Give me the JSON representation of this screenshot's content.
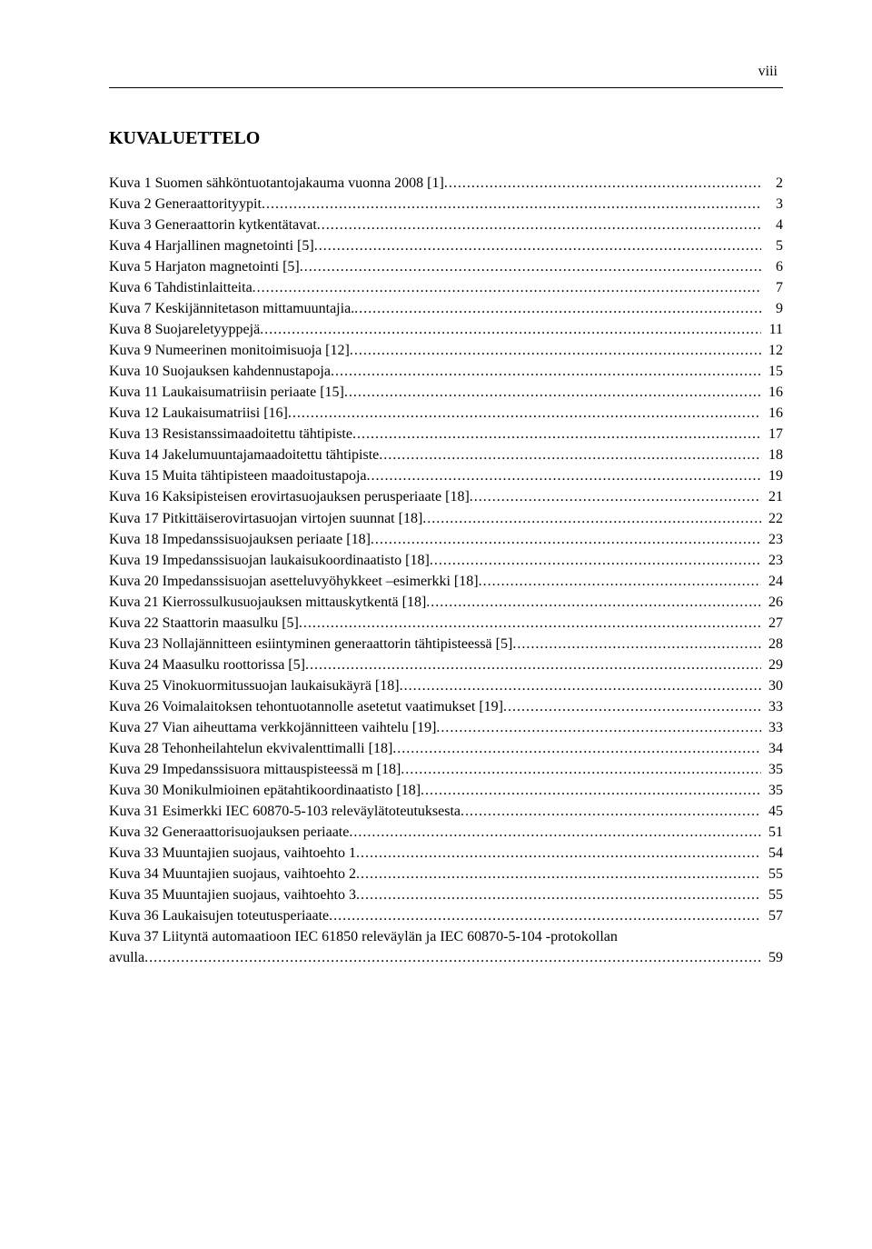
{
  "page_number_roman": "viii",
  "heading": "KUVALUETTELO",
  "entries": [
    {
      "label": "Kuva 1 Suomen sähköntuotantojakauma vuonna 2008 [1]",
      "page": "2"
    },
    {
      "label": "Kuva 2 Generaattorityypit",
      "page": "3"
    },
    {
      "label": "Kuva 3 Generaattorin kytkentätavat",
      "page": "4"
    },
    {
      "label": "Kuva 4 Harjallinen magnetointi [5]",
      "page": "5"
    },
    {
      "label": "Kuva 5 Harjaton magnetointi [5]",
      "page": "6"
    },
    {
      "label": "Kuva 6 Tahdistinlaitteita",
      "page": "7"
    },
    {
      "label": "Kuva 7 Keskijännitetason mittamuuntajia.",
      "page": "9"
    },
    {
      "label": "Kuva 8 Suojareletyyppejä",
      "page": "11"
    },
    {
      "label": "Kuva 9 Numeerinen monitoimisuoja [12]",
      "page": "12"
    },
    {
      "label": "Kuva 10 Suojauksen kahdennustapoja",
      "page": "15"
    },
    {
      "label": "Kuva 11 Laukaisumatriisin periaate [15]",
      "page": "16"
    },
    {
      "label": "Kuva 12 Laukaisumatriisi [16]",
      "page": "16"
    },
    {
      "label": "Kuva 13 Resistanssimaadoitettu tähtipiste",
      "page": "17"
    },
    {
      "label": "Kuva 14 Jakelumuuntajamaadoitettu tähtipiste",
      "page": "18"
    },
    {
      "label": "Kuva 15 Muita tähtipisteen maadoitustapoja",
      "page": "19"
    },
    {
      "label": "Kuva 16 Kaksipisteisen erovirtasuojauksen perusperiaate [18]",
      "page": "21"
    },
    {
      "label": "Kuva 17 Pitkittäiserovirtasuojan virtojen suunnat [18]",
      "page": "22"
    },
    {
      "label": "Kuva 18 Impedanssisuojauksen periaate [18]",
      "page": "23"
    },
    {
      "label": "Kuva 19 Impedanssisuojan laukaisukoordinaatisto [18]",
      "page": "23"
    },
    {
      "label": "Kuva 20 Impedanssisuojan asetteluvyöhykkeet –esimerkki [18]",
      "page": "24"
    },
    {
      "label": "Kuva 21 Kierrossulkusuojauksen mittauskytkentä [18]",
      "page": "26"
    },
    {
      "label": "Kuva 22 Staattorin maasulku [5]",
      "page": "27"
    },
    {
      "label": "Kuva 23 Nollajännitteen esiintyminen generaattorin tähtipisteessä [5]",
      "page": "28"
    },
    {
      "label": "Kuva 24 Maasulku roottorissa [5]",
      "page": "29"
    },
    {
      "label": "Kuva 25 Vinokuormitussuojan laukaisukäyrä [18]",
      "page": "30"
    },
    {
      "label": "Kuva 26 Voimalaitoksen tehontuotannolle asetetut vaatimukset [19]",
      "page": "33"
    },
    {
      "label": "Kuva 27 Vian aiheuttama verkkojännitteen vaihtelu [19]",
      "page": "33"
    },
    {
      "label": "Kuva 28 Tehonheilahtelun ekvivalenttimalli [18]",
      "page": "34"
    },
    {
      "label": "Kuva 29 Impedanssisuora mittauspisteessä m [18]",
      "page": "35"
    },
    {
      "label": "Kuva 30 Monikulmioinen epätahtikoordinaatisto [18]",
      "page": "35"
    },
    {
      "label": "Kuva 31 Esimerkki IEC 60870-5-103 releväylätoteutuksesta",
      "page": "45"
    },
    {
      "label": "Kuva 32 Generaattorisuojauksen periaate",
      "page": "51"
    },
    {
      "label": "Kuva 33 Muuntajien suojaus, vaihtoehto 1",
      "page": "54"
    },
    {
      "label": "Kuva 34 Muuntajien suojaus, vaihtoehto 2",
      "page": "55"
    },
    {
      "label": "Kuva 35 Muuntajien suojaus, vaihtoehto 3",
      "page": "55"
    },
    {
      "label": "Kuva 36 Laukaisujen toteutusperiaate",
      "page": "57"
    }
  ],
  "last_entry": {
    "label": "Kuva 37 Liityntä automaatioon IEC 61850 releväylän ja IEC 60870-5-104 -protokollan avulla",
    "page": "59"
  }
}
